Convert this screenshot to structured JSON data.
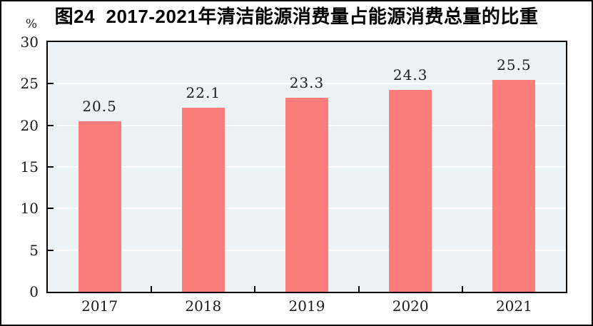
{
  "chart_data": {
    "type": "bar",
    "title": "图24  2017-2021年清洁能源消费量占能源消费总量的比重",
    "unit": "%",
    "categories": [
      "2017",
      "2018",
      "2019",
      "2020",
      "2021"
    ],
    "values": [
      20.5,
      22.1,
      23.3,
      24.3,
      25.5
    ],
    "value_labels": [
      "20.5",
      "22.1",
      "23.3",
      "24.3",
      "25.5"
    ],
    "ylim": [
      0,
      30
    ],
    "yticks": [
      0,
      5,
      10,
      15,
      20,
      25,
      30
    ],
    "grid": true,
    "legend": false,
    "bar_color": "#FD7D7D",
    "plot_bg_color": "#ECF3F7",
    "grid_color": "#FFFFFF",
    "axis_color": "#000000",
    "text_color": "#1A1A1A"
  }
}
